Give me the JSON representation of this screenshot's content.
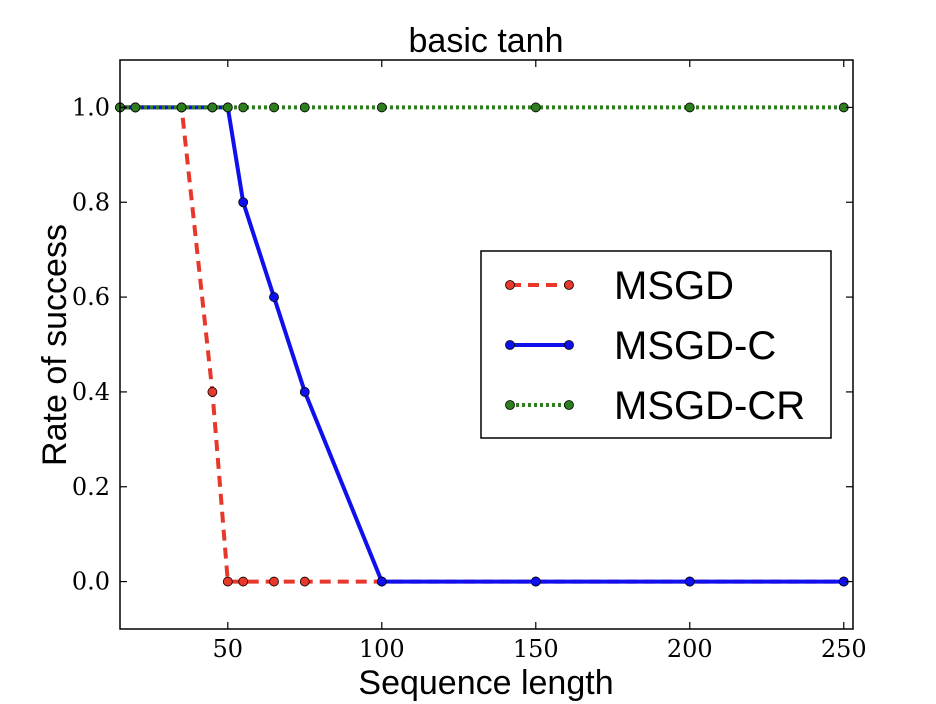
{
  "chart_data": {
    "type": "line",
    "title": "basic tanh",
    "xlabel": "Sequence length",
    "ylabel": "Rate of success",
    "xlim": [
      15,
      253
    ],
    "ylim": [
      -0.1,
      1.1
    ],
    "xticks": [
      50,
      100,
      150,
      200,
      250
    ],
    "yticks": [
      0.0,
      0.2,
      0.4,
      0.6,
      0.8,
      1.0
    ],
    "xtick_labels": [
      "50",
      "100",
      "150",
      "200",
      "250"
    ],
    "ytick_labels": [
      "0.0",
      "0.2",
      "0.4",
      "0.6",
      "0.8",
      "1.0"
    ],
    "grid": false,
    "legend_position": "center-right",
    "series": [
      {
        "name": "MSGD",
        "color": "#e8382b",
        "style": "dashed",
        "x": [
          15,
          20,
          35,
          45,
          50,
          55,
          65,
          75,
          100,
          150,
          200,
          250
        ],
        "y": [
          1.0,
          1.0,
          1.0,
          0.4,
          0.0,
          0.0,
          0.0,
          0.0,
          0.0,
          0.0,
          0.0,
          0.0
        ]
      },
      {
        "name": "MSGD-C",
        "color": "#1010ee",
        "style": "solid",
        "x": [
          15,
          20,
          35,
          45,
          50,
          55,
          65,
          75,
          100,
          150,
          200,
          250
        ],
        "y": [
          1.0,
          1.0,
          1.0,
          1.0,
          1.0,
          0.8,
          0.6,
          0.4,
          0.0,
          0.0,
          0.0,
          0.0
        ]
      },
      {
        "name": "MSGD-CR",
        "color": "#2e7d1e",
        "style": "dotted",
        "x": [
          15,
          20,
          35,
          45,
          50,
          55,
          65,
          75,
          100,
          150,
          200,
          250
        ],
        "y": [
          1.0,
          1.0,
          1.0,
          1.0,
          1.0,
          1.0,
          1.0,
          1.0,
          1.0,
          1.0,
          1.0,
          1.0
        ]
      }
    ]
  }
}
